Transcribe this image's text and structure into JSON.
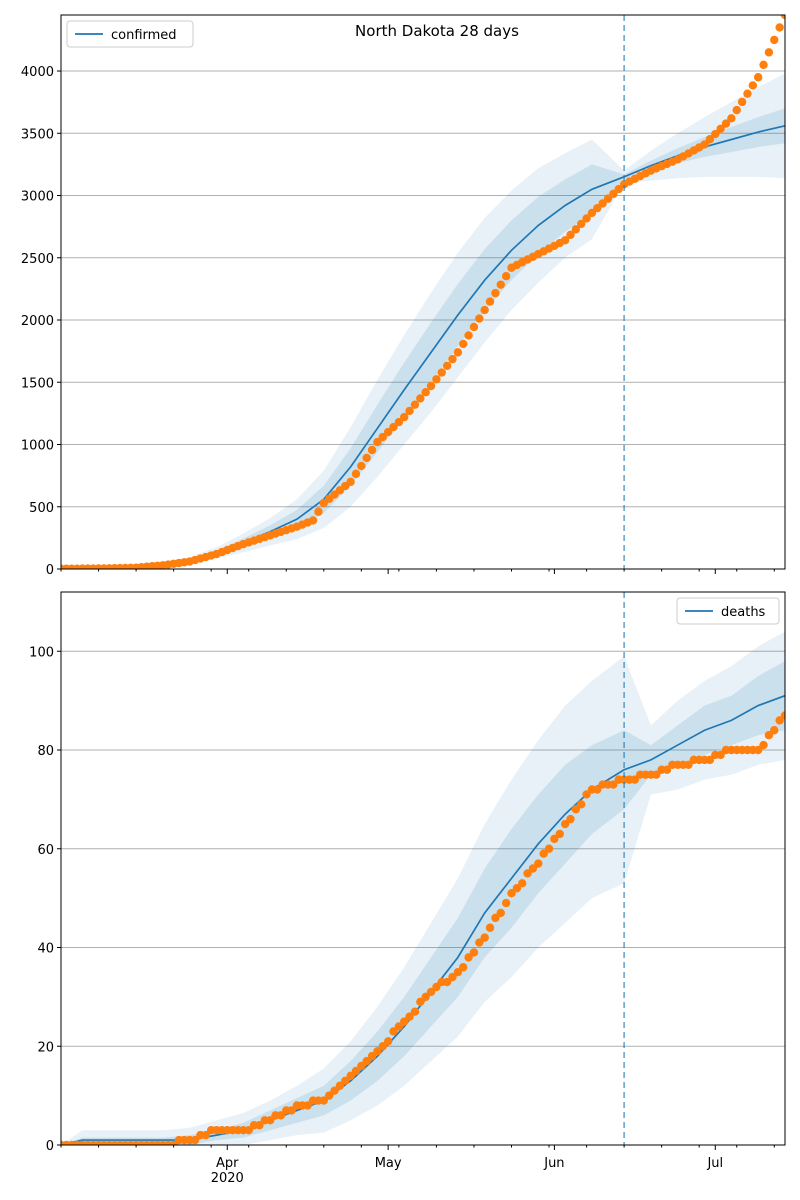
{
  "chart_data": [
    {
      "type": "line",
      "title": "North Dakota 28 days",
      "legend": {
        "label": "confirmed",
        "placement": "top-left"
      },
      "ylim": [
        0,
        4450
      ],
      "yticks": [
        0,
        500,
        1000,
        1500,
        2000,
        2500,
        3000,
        3500,
        4000
      ],
      "grid": "y",
      "forecast_start": "2020-06-14",
      "colors": {
        "model": "#1f77b4",
        "observed": "#ff7f0e",
        "band": "#1f77b4",
        "divider": "#1f77b4"
      },
      "model": {
        "x": [
          "2020-03-01",
          "2020-03-10",
          "2020-03-15",
          "2020-03-20",
          "2020-03-25",
          "2020-03-30",
          "2020-04-04",
          "2020-04-09",
          "2020-04-14",
          "2020-04-19",
          "2020-04-24",
          "2020-04-29",
          "2020-05-04",
          "2020-05-09",
          "2020-05-14",
          "2020-05-19",
          "2020-05-24",
          "2020-05-29",
          "2020-06-03",
          "2020-06-08",
          "2020-06-14",
          "2020-06-19",
          "2020-06-24",
          "2020-06-29",
          "2020-07-04",
          "2020-07-09",
          "2020-07-14"
        ],
        "y": [
          0,
          2,
          8,
          30,
          70,
          130,
          210,
          300,
          400,
          560,
          820,
          1130,
          1440,
          1740,
          2040,
          2320,
          2560,
          2760,
          2920,
          3050,
          3150,
          3240,
          3320,
          3390,
          3450,
          3510,
          3560
        ],
        "band_half_widths": [
          [
            0,
            0,
            1,
            5,
            12,
            22,
            35,
            50,
            75,
            110,
            150,
            190,
            220,
            240,
            250,
            250,
            240,
            230,
            210,
            200,
            20,
            40,
            60,
            80,
            100,
            120,
            140
          ],
          [
            0,
            0,
            3,
            10,
            25,
            45,
            75,
            110,
            160,
            230,
            320,
            390,
            440,
            480,
            500,
            500,
            480,
            460,
            420,
            400,
            50,
            120,
            180,
            240,
            300,
            360,
            420
          ]
        ]
      },
      "observed": {
        "x": [
          "2020-03-01",
          "2020-03-05",
          "2020-03-10",
          "2020-03-15",
          "2020-03-20",
          "2020-03-25",
          "2020-03-30",
          "2020-04-04",
          "2020-04-09",
          "2020-04-14",
          "2020-04-17",
          "2020-04-19",
          "2020-04-24",
          "2020-04-29",
          "2020-05-04",
          "2020-05-09",
          "2020-05-14",
          "2020-05-19",
          "2020-05-24",
          "2020-05-29",
          "2020-06-03",
          "2020-06-08",
          "2020-06-14",
          "2020-06-19",
          "2020-06-24",
          "2020-06-29",
          "2020-07-04",
          "2020-07-09",
          "2020-07-14"
        ],
        "y": [
          2,
          3,
          5,
          10,
          30,
          60,
          120,
          200,
          270,
          340,
          390,
          530,
          700,
          1020,
          1220,
          1470,
          1740,
          2080,
          2420,
          2530,
          2640,
          2860,
          3090,
          3200,
          3290,
          3410,
          3620,
          3950,
          4450
        ]
      }
    },
    {
      "type": "line",
      "title": "",
      "legend": {
        "label": "deaths",
        "placement": "top-right"
      },
      "ylim": [
        0,
        112
      ],
      "yticks": [
        0,
        20,
        40,
        60,
        80,
        100
      ],
      "grid": "y",
      "forecast_start": "2020-06-14",
      "colors": {
        "model": "#1f77b4",
        "observed": "#ff7f0e",
        "band": "#1f77b4",
        "divider": "#1f77b4"
      },
      "model": {
        "x": [
          "2020-03-01",
          "2020-03-05",
          "2020-03-10",
          "2020-03-15",
          "2020-03-20",
          "2020-03-25",
          "2020-03-30",
          "2020-04-04",
          "2020-04-09",
          "2020-04-14",
          "2020-04-19",
          "2020-04-24",
          "2020-04-29",
          "2020-05-04",
          "2020-05-09",
          "2020-05-14",
          "2020-05-19",
          "2020-05-24",
          "2020-05-29",
          "2020-06-03",
          "2020-06-08",
          "2020-06-14",
          "2020-06-19",
          "2020-06-24",
          "2020-06-29",
          "2020-07-04",
          "2020-07-09",
          "2020-07-14"
        ],
        "y": [
          0,
          1,
          1,
          1,
          1,
          1,
          2,
          3,
          5,
          7,
          9,
          13,
          18,
          24,
          31,
          38,
          47,
          54,
          61,
          67,
          72,
          76,
          78,
          81,
          84,
          86,
          89,
          91
        ],
        "band_half_widths": [
          [
            0,
            0.5,
            0.5,
            0.5,
            0.5,
            1,
            1,
            1.5,
            2,
            2.5,
            3,
            4,
            5,
            6,
            7,
            8,
            9,
            10,
            10,
            10,
            9,
            8,
            3,
            4,
            5,
            5,
            6,
            7
          ],
          [
            0,
            2,
            2,
            2,
            2,
            2.5,
            3,
            3.5,
            4,
            5,
            6.5,
            8,
            10,
            12,
            14,
            16,
            18,
            20,
            21,
            22,
            22,
            23,
            7,
            9,
            10,
            11,
            12,
            13
          ]
        ]
      },
      "observed": {
        "x": [
          "2020-03-01",
          "2020-03-05",
          "2020-03-10",
          "2020-03-15",
          "2020-03-20",
          "2020-03-25",
          "2020-03-30",
          "2020-04-04",
          "2020-04-09",
          "2020-04-14",
          "2020-04-19",
          "2020-04-24",
          "2020-04-29",
          "2020-05-04",
          "2020-05-09",
          "2020-05-14",
          "2020-05-19",
          "2020-05-24",
          "2020-05-29",
          "2020-06-03",
          "2020-06-08",
          "2020-06-14",
          "2020-06-19",
          "2020-06-24",
          "2020-06-29",
          "2020-07-04",
          "2020-07-09",
          "2020-07-14"
        ],
        "y": [
          0,
          0,
          0,
          0,
          0,
          1,
          3,
          3,
          5,
          8,
          9,
          14,
          19,
          25,
          31,
          35,
          42,
          51,
          57,
          65,
          72,
          74,
          75,
          77,
          78,
          80,
          80,
          87
        ]
      }
    }
  ],
  "x_axis": {
    "range": [
      "2020-03-01",
      "2020-07-14"
    ],
    "ticks": [
      {
        "date": "2020-04-01",
        "label": "Apr",
        "sublabel": "2020"
      },
      {
        "date": "2020-05-01",
        "label": "May",
        "sublabel": ""
      },
      {
        "date": "2020-06-01",
        "label": "Jun",
        "sublabel": ""
      },
      {
        "date": "2020-07-01",
        "label": "Jul",
        "sublabel": ""
      }
    ]
  }
}
